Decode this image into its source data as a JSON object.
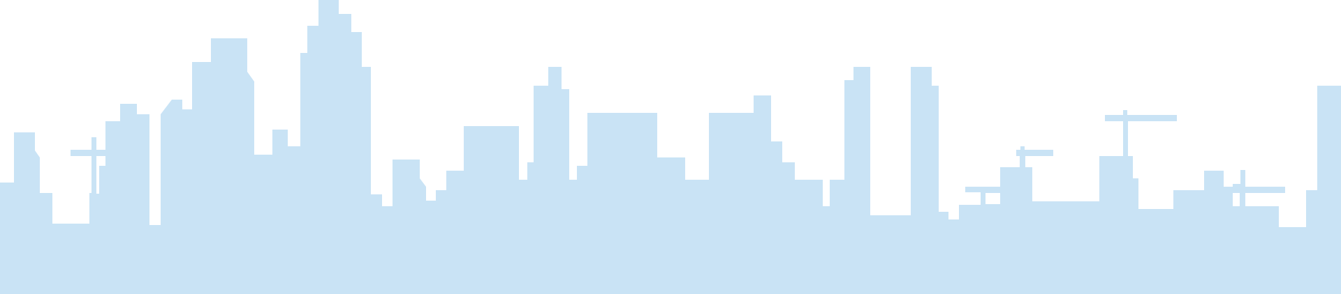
{
  "illustration": {
    "subject": "city-skyline-silhouette",
    "colors": {
      "background": "#ffffff",
      "silhouette": "#c9e3f5"
    }
  }
}
